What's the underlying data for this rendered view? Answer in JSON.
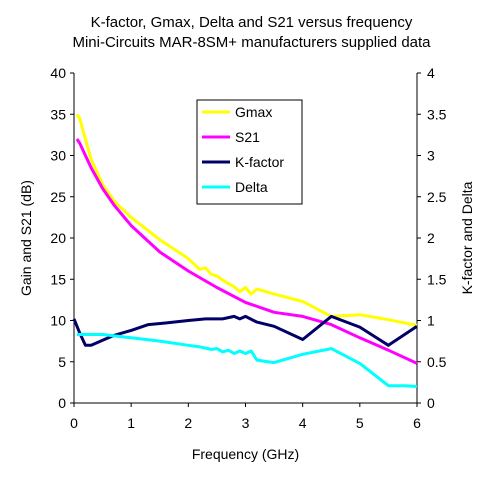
{
  "chart_data": {
    "type": "line",
    "title": "K-factor, Gmax, Delta and S21 versus frequency",
    "subtitle": "Mini-Circuits MAR-8SM+ manufacturers supplied data",
    "xlabel": "Frequency (GHz)",
    "ylabel": "Gain and S21 (dB)",
    "y2label": "K-factor and Delta",
    "xlim": [
      0,
      6
    ],
    "ylim": [
      0,
      40
    ],
    "y2lim": [
      0,
      4
    ],
    "xticks": [
      "0",
      "1",
      "2",
      "3",
      "4",
      "5",
      "6"
    ],
    "yticks": [
      "0",
      "5",
      "10",
      "15",
      "20",
      "25",
      "30",
      "35",
      "40"
    ],
    "y2ticks": [
      "0",
      "0.5",
      "1",
      "1.5",
      "2",
      "2.5",
      "3",
      "3.5",
      "4"
    ],
    "grid": false,
    "legend_position": "top-center",
    "series": [
      {
        "name": "Gmax",
        "axis": "left",
        "color": "#ffff00",
        "x": [
          0.05,
          0.1,
          0.2,
          0.3,
          0.5,
          0.7,
          1.0,
          1.5,
          2.0,
          2.2,
          2.3,
          2.4,
          2.5,
          2.6,
          2.7,
          2.8,
          2.9,
          3.0,
          3.1,
          3.2,
          3.5,
          4.0,
          4.5,
          5.0,
          5.5,
          6.0
        ],
        "values": [
          35.0,
          34.5,
          32.0,
          29.5,
          26.5,
          24.5,
          22.5,
          19.8,
          17.5,
          16.2,
          16.4,
          15.6,
          15.4,
          14.9,
          14.5,
          14.1,
          13.5,
          14.0,
          13.2,
          13.8,
          13.2,
          12.3,
          10.5,
          10.7,
          10.1,
          9.4
        ]
      },
      {
        "name": "S21",
        "axis": "left",
        "color": "#ff00ff",
        "x": [
          0.05,
          0.1,
          0.2,
          0.3,
          0.5,
          0.7,
          1.0,
          1.5,
          2.0,
          2.5,
          3.0,
          3.5,
          4.0,
          4.5,
          5.0,
          5.5,
          6.0
        ],
        "values": [
          32.0,
          31.5,
          30.0,
          28.5,
          26.0,
          24.0,
          21.5,
          18.3,
          16.0,
          14.0,
          12.2,
          11.0,
          10.5,
          9.5,
          7.9,
          6.4,
          4.8
        ]
      },
      {
        "name": "K-factor",
        "axis": "right",
        "color": "#000066",
        "x": [
          0.0,
          0.1,
          0.2,
          0.3,
          0.5,
          0.7,
          1.0,
          1.3,
          1.6,
          2.0,
          2.3,
          2.6,
          2.8,
          2.9,
          3.0,
          3.2,
          3.5,
          4.0,
          4.5,
          5.0,
          5.5,
          6.0
        ],
        "values": [
          1.02,
          0.85,
          0.7,
          0.7,
          0.76,
          0.82,
          0.88,
          0.95,
          0.97,
          1.0,
          1.02,
          1.02,
          1.05,
          1.02,
          1.05,
          0.98,
          0.93,
          0.77,
          1.05,
          0.92,
          0.7,
          0.93
        ]
      },
      {
        "name": "Delta",
        "axis": "right",
        "color": "#00ffff",
        "x": [
          0.05,
          0.5,
          1.0,
          1.5,
          2.0,
          2.2,
          2.4,
          2.5,
          2.6,
          2.7,
          2.8,
          2.9,
          3.0,
          3.1,
          3.2,
          3.5,
          4.0,
          4.5,
          5.0,
          5.5,
          5.8,
          6.0
        ],
        "values": [
          0.83,
          0.83,
          0.79,
          0.75,
          0.7,
          0.68,
          0.65,
          0.66,
          0.62,
          0.64,
          0.6,
          0.63,
          0.6,
          0.63,
          0.52,
          0.49,
          0.59,
          0.66,
          0.48,
          0.21,
          0.21,
          0.2
        ]
      }
    ]
  }
}
